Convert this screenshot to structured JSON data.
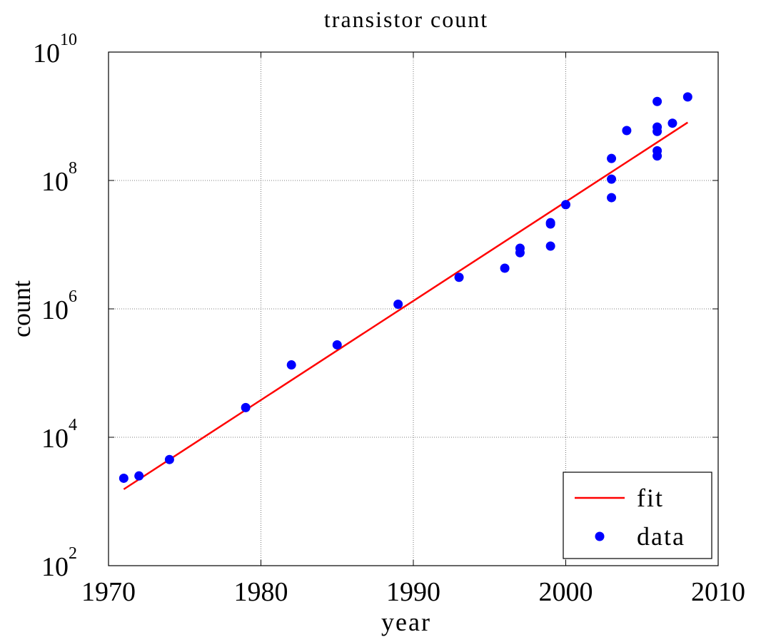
{
  "chart_data": {
    "type": "scatter",
    "title": "transistor count",
    "xlabel": "year",
    "ylabel": "count",
    "xlim": [
      1970,
      2010
    ],
    "xticks": [
      1970,
      1980,
      1990,
      2000,
      2010
    ],
    "ylim": [
      100,
      10000000000
    ],
    "yscale": "log",
    "yticks": [
      {
        "value": 100,
        "label": "10",
        "exponent": "2"
      },
      {
        "value": 10000,
        "label": "10",
        "exponent": "4"
      },
      {
        "value": 1000000,
        "label": "10",
        "exponent": "6"
      },
      {
        "value": 100000000,
        "label": "10",
        "exponent": "8"
      },
      {
        "value": 10000000000,
        "label": "10",
        "exponent": "10"
      }
    ],
    "grid": true,
    "legend": "lower right",
    "series": [
      {
        "name": "fit",
        "type": "line",
        "color": "#ff0000",
        "x": [
          1971,
          2008
        ],
        "values": [
          1550,
          800000000
        ]
      },
      {
        "name": "data",
        "type": "scatter",
        "color": "#0000ff",
        "x": [
          1971,
          1972,
          1974,
          1979,
          1982,
          1985,
          1989,
          1993,
          1996,
          1997,
          1997,
          1999,
          1999,
          1999,
          2000,
          2003,
          2003,
          2003,
          2004,
          2006,
          2006,
          2006,
          2006,
          2006,
          2007,
          2008
        ],
        "values": [
          2300,
          2500,
          4500,
          29000,
          134000,
          275000,
          1180000,
          3100000,
          4300000,
          7500000,
          8800000,
          9500000,
          21000000,
          22000000,
          42000000,
          54000000,
          105000000,
          220000000,
          600000000,
          1700000000,
          680000000,
          580000000,
          290000000,
          241000000,
          780000000,
          2000000000
        ]
      }
    ]
  }
}
